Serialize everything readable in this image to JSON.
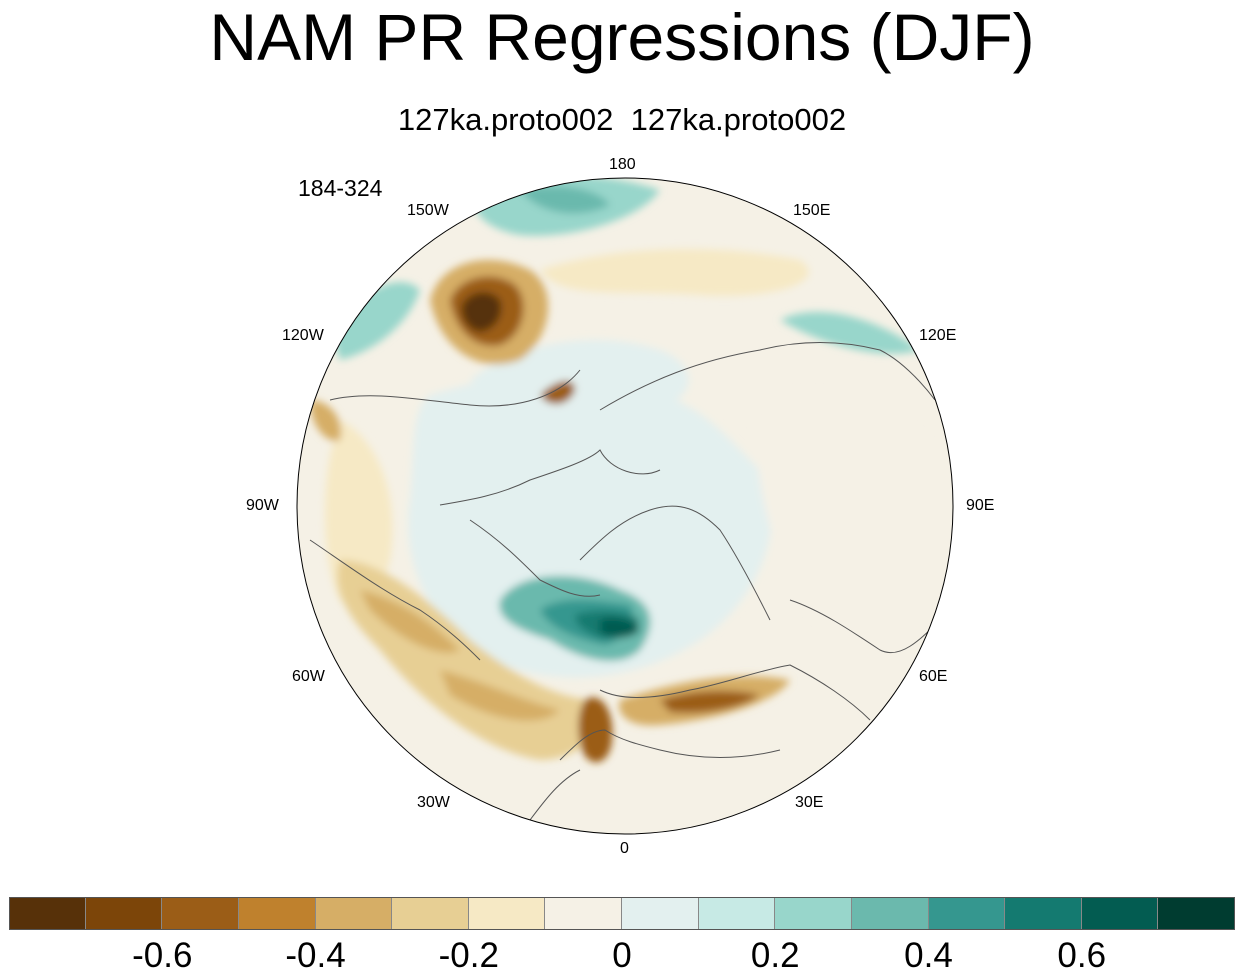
{
  "title": "NAM PR Regressions (DJF)",
  "subtitle": "127ka.proto002  127ka.proto002",
  "period": "184-324",
  "longitude_labels": {
    "n180": "180",
    "w150": "150W",
    "e150": "150E",
    "w120": "120W",
    "e120": "120E",
    "w90": "90W",
    "e90": "90E",
    "w60": "60W",
    "e60": "60E",
    "w30": "30W",
    "e30": "30E",
    "zero": "0"
  },
  "colorbar": {
    "colors": [
      "#573109",
      "#7c4509",
      "#9b5d17",
      "#bf812d",
      "#d6ae66",
      "#e7cf94",
      "#f6e9c5",
      "#f5f1e6",
      "#e3f0ef",
      "#c7eae5",
      "#98d6cb",
      "#6bb9ad",
      "#35978f",
      "#147a70",
      "#035c51",
      "#003c30"
    ],
    "tick_labels": [
      "-0.6",
      "-0.4",
      "-0.2",
      "0",
      "0.2",
      "0.4",
      "0.6"
    ]
  },
  "colors": {
    "coastline": "#555555",
    "ocean_base": "#f5f1e6"
  }
}
